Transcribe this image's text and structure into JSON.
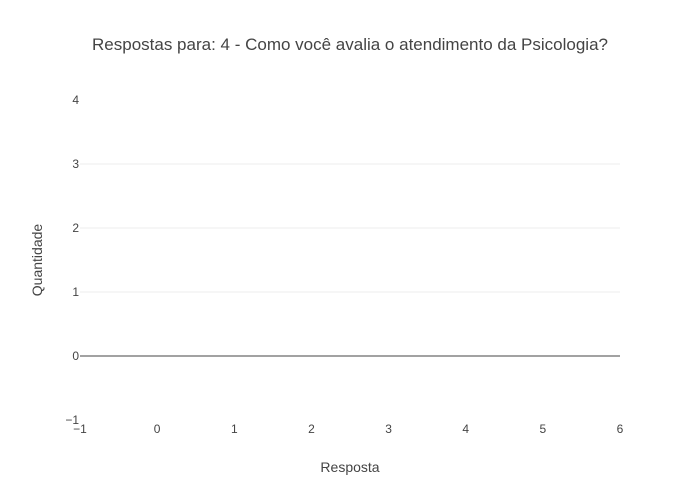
{
  "chart_data": {
    "type": "bar",
    "title": "Respostas para: 4 - Como você avalia o atendimento da Psicologia?",
    "xlabel": "Resposta",
    "ylabel": "Quantidade",
    "xlim": [
      -1,
      6
    ],
    "ylim": [
      -1,
      4
    ],
    "x_ticks": [
      "−1",
      "0",
      "1",
      "2",
      "3",
      "4",
      "5",
      "6"
    ],
    "y_ticks": [
      "−1",
      "0",
      "1",
      "2",
      "3",
      "4"
    ],
    "x_tick_values": [
      -1,
      0,
      1,
      2,
      3,
      4,
      5,
      6
    ],
    "y_tick_values": [
      -1,
      0,
      1,
      2,
      3,
      4
    ],
    "series": [],
    "grid": true,
    "legend": "none"
  },
  "colors": {
    "grid": "#eeeeee",
    "zeroline": "#444444",
    "text": "#444444",
    "background": "#ffffff"
  }
}
